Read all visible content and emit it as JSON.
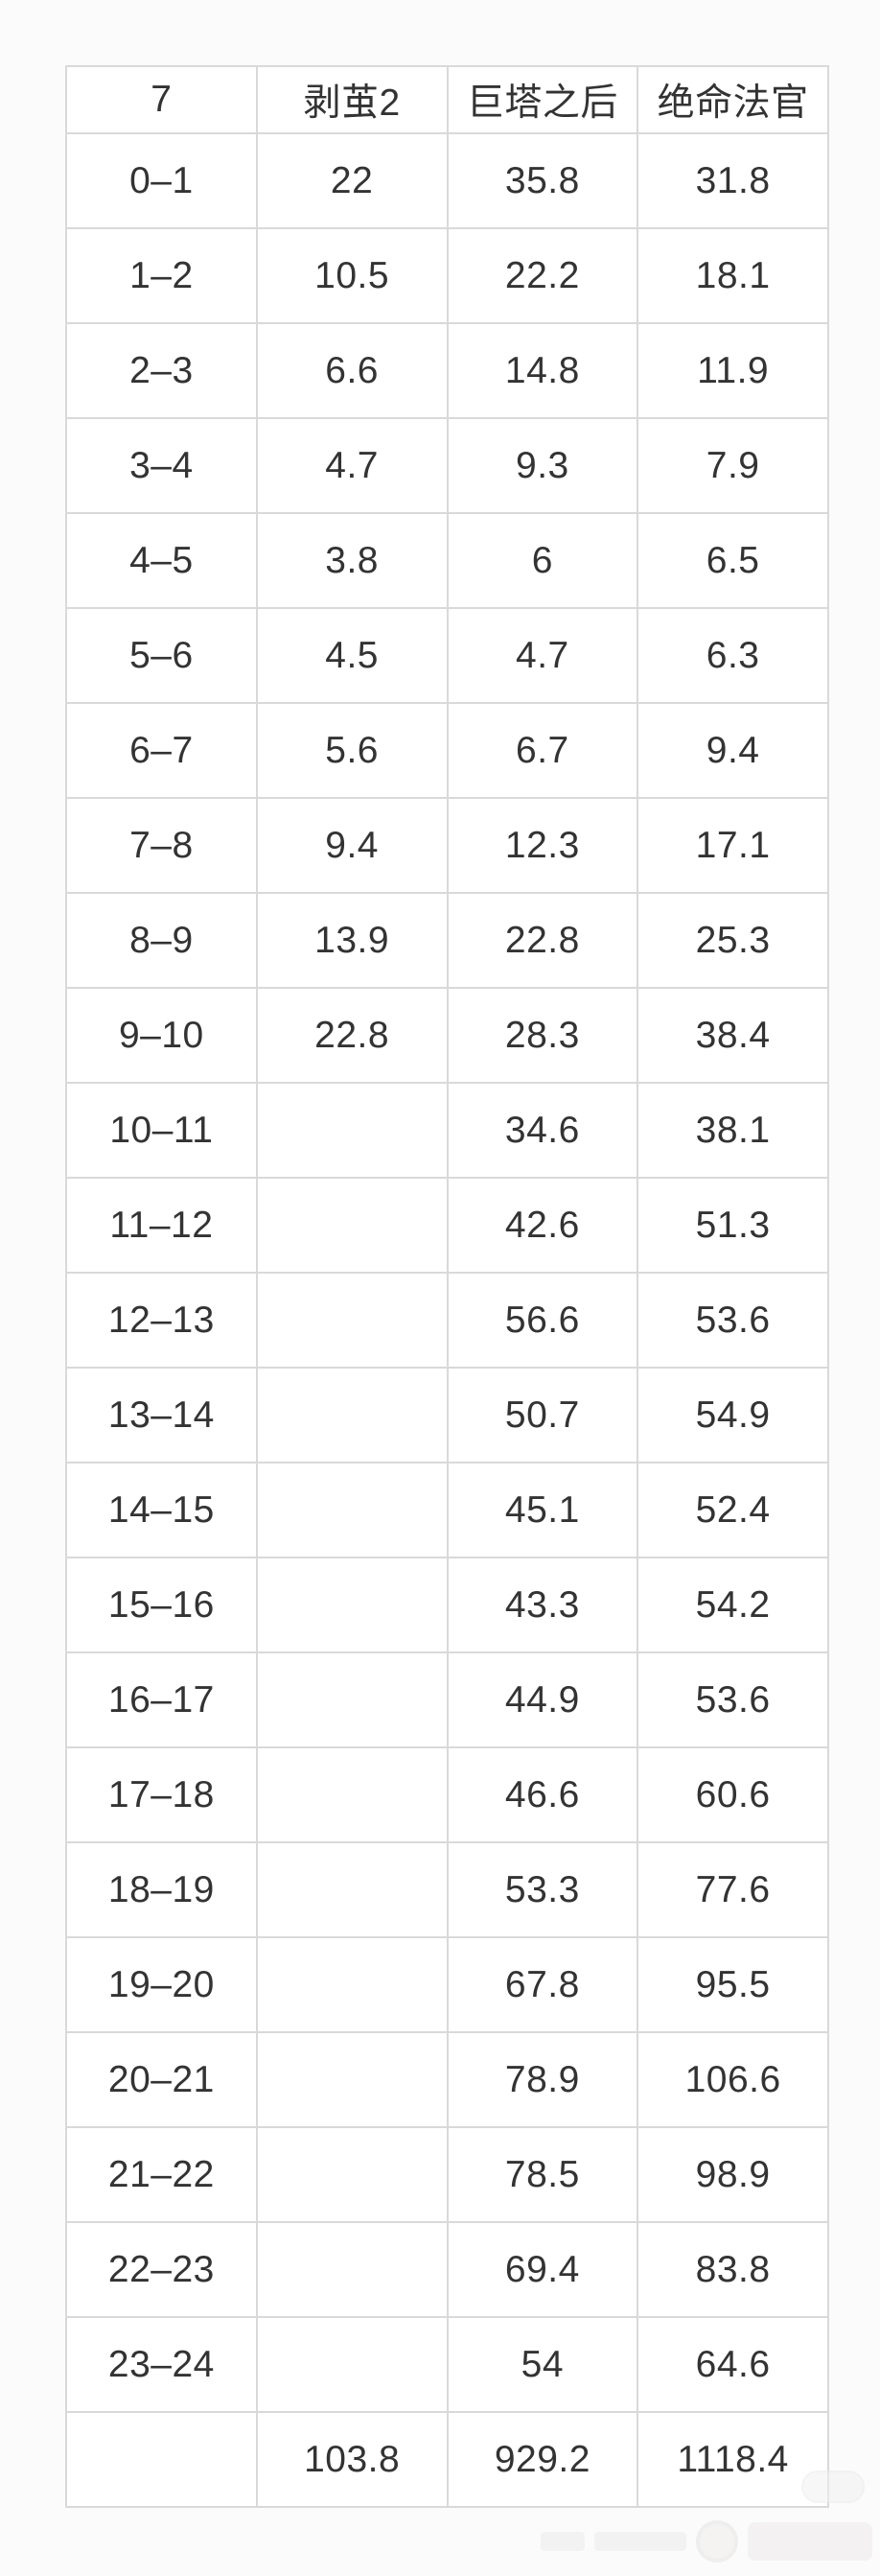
{
  "colors": {
    "page_background": "#fbfbfb",
    "cell_background": "#ffffff",
    "grid_border": "#d9d9d9",
    "text": "#333333"
  },
  "chart_data": {
    "type": "table",
    "title": "",
    "columns": [
      "7",
      "剥茧2",
      "巨塔之后",
      "绝命法官"
    ],
    "rows": [
      [
        "0–1",
        "22",
        "35.8",
        "31.8"
      ],
      [
        "1–2",
        "10.5",
        "22.2",
        "18.1"
      ],
      [
        "2–3",
        "6.6",
        "14.8",
        "11.9"
      ],
      [
        "3–4",
        "4.7",
        "9.3",
        "7.9"
      ],
      [
        "4–5",
        "3.8",
        "6",
        "6.5"
      ],
      [
        "5–6",
        "4.5",
        "4.7",
        "6.3"
      ],
      [
        "6–7",
        "5.6",
        "6.7",
        "9.4"
      ],
      [
        "7–8",
        "9.4",
        "12.3",
        "17.1"
      ],
      [
        "8–9",
        "13.9",
        "22.8",
        "25.3"
      ],
      [
        "9–10",
        "22.8",
        "28.3",
        "38.4"
      ],
      [
        "10–11",
        "",
        "34.6",
        "38.1"
      ],
      [
        "11–12",
        "",
        "42.6",
        "51.3"
      ],
      [
        "12–13",
        "",
        "56.6",
        "53.6"
      ],
      [
        "13–14",
        "",
        "50.7",
        "54.9"
      ],
      [
        "14–15",
        "",
        "45.1",
        "52.4"
      ],
      [
        "15–16",
        "",
        "43.3",
        "54.2"
      ],
      [
        "16–17",
        "",
        "44.9",
        "53.6"
      ],
      [
        "17–18",
        "",
        "46.6",
        "60.6"
      ],
      [
        "18–19",
        "",
        "53.3",
        "77.6"
      ],
      [
        "19–20",
        "",
        "67.8",
        "95.5"
      ],
      [
        "20–21",
        "",
        "78.9",
        "106.6"
      ],
      [
        "21–22",
        "",
        "78.5",
        "98.9"
      ],
      [
        "22–23",
        "",
        "69.4",
        "83.8"
      ],
      [
        "23–24",
        "",
        "54",
        "64.6"
      ],
      [
        "",
        "103.8",
        "929.2",
        "1118.4"
      ]
    ]
  },
  "watermark": {
    "icon": "watermark-logo-icon"
  }
}
